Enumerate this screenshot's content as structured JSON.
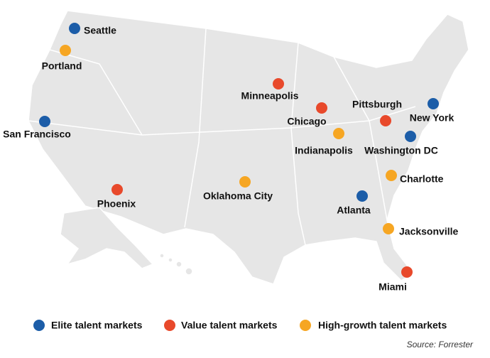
{
  "groups": [
    {
      "name": "Elite talent markets",
      "color": "#1c5da8",
      "cities": [
        "Seattle",
        "San Francisco",
        "New York",
        "Washington DC",
        "Atlanta"
      ]
    },
    {
      "name": "Value talent markets",
      "color": "#e8492b",
      "cities": [
        "Minneapolis",
        "Chicago",
        "Pittsburgh",
        "Phoenix",
        "Miami"
      ]
    },
    {
      "name": "High-growth talent markets",
      "color": "#f6a623",
      "cities": [
        "Portland",
        "Indianapolis",
        "Oklahoma City",
        "Charlotte",
        "Jacksonville"
      ]
    }
  ],
  "source": "Source: Forrester"
}
